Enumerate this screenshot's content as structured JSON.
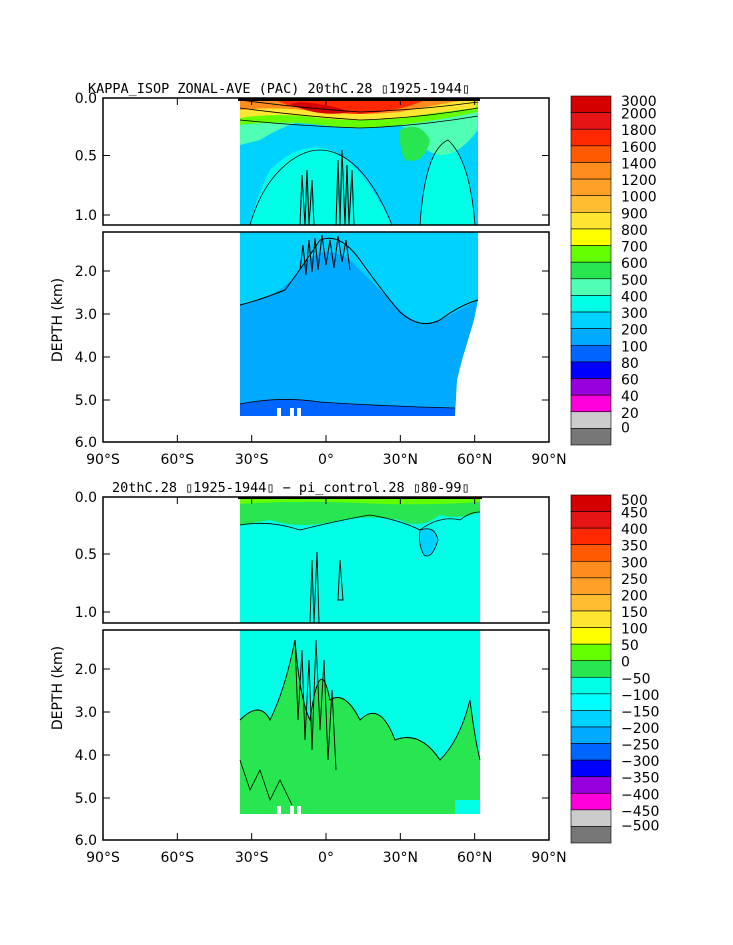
{
  "chart_data": [
    {
      "type": "heatmap",
      "title": "KAPPA_ISOP ZONAL-AVE (PAC) 20thC.28 ▯1925-1944▯",
      "ylabel": "DEPTH (km)",
      "xlabel": "",
      "x_ticks": [
        "90°S",
        "60°S",
        "30°S",
        "0°",
        "30°N",
        "60°N",
        "90°N"
      ],
      "y_ticks_upper": [
        "0.0",
        "0.5",
        "1.0"
      ],
      "y_ticks_lower": [
        "2.0",
        "3.0",
        "4.0",
        "5.0",
        "6.0"
      ],
      "xlim": [
        -90,
        90
      ],
      "ylim_km": [
        0,
        6
      ],
      "data_extent": {
        "lat": [
          -34,
          62
        ],
        "depth_km": [
          0,
          5.4
        ]
      },
      "grid": false,
      "legend": "colorbar-right",
      "colorbar": {
        "labels": [
          "3000",
          "2000",
          "1800",
          "1600",
          "1400",
          "1200",
          "1000",
          "900",
          "800",
          "700",
          "600",
          "500",
          "400",
          "300",
          "200",
          "100",
          "80",
          "60",
          "40",
          "20",
          "0"
        ],
        "colors": [
          "#d40000",
          "#e61414",
          "#ff2800",
          "#ff5a00",
          "#ff8c1e",
          "#ffa028",
          "#ffbe32",
          "#ffe632",
          "#ffff00",
          "#64ff00",
          "#28e650",
          "#50ffb4",
          "#00ffe6",
          "#00d2ff",
          "#00aaff",
          "#0064ff",
          "#0000ff",
          "#9600dc",
          "#ff00dc",
          "#cccccc",
          "#777777"
        ]
      }
    },
    {
      "type": "heatmap",
      "title": "20thC.28 ▯1925-1944▯ − pi_control.28 ▯80-99▯",
      "ylabel": "DEPTH (km)",
      "xlabel": "",
      "x_ticks": [
        "90°S",
        "60°S",
        "30°S",
        "0°",
        "30°N",
        "60°N",
        "90°N"
      ],
      "y_ticks_upper": [
        "0.0",
        "0.5",
        "1.0"
      ],
      "y_ticks_lower": [
        "2.0",
        "3.0",
        "4.0",
        "5.0",
        "6.0"
      ],
      "xlim": [
        -90,
        90
      ],
      "ylim_km": [
        0,
        6
      ],
      "data_extent": {
        "lat": [
          -34,
          62
        ],
        "depth_km": [
          0,
          5.4
        ]
      },
      "grid": false,
      "legend": "colorbar-right",
      "colorbar": {
        "labels": [
          "500",
          "450",
          "400",
          "350",
          "300",
          "250",
          "200",
          "150",
          "100",
          "50",
          "0",
          "−50",
          "−100",
          "−150",
          "−200",
          "−250",
          "−300",
          "−350",
          "−400",
          "−450",
          "−500"
        ],
        "colors": [
          "#d40000",
          "#e61414",
          "#ff2800",
          "#ff5a00",
          "#ff8c1e",
          "#ffa028",
          "#ffbe32",
          "#ffe632",
          "#ffff00",
          "#64ff00",
          "#28e650",
          "#00ffe6",
          "#00ffff",
          "#00d2ff",
          "#00aaff",
          "#0064ff",
          "#0000ff",
          "#9600dc",
          "#ff00dc",
          "#cccccc",
          "#777777"
        ]
      }
    }
  ]
}
